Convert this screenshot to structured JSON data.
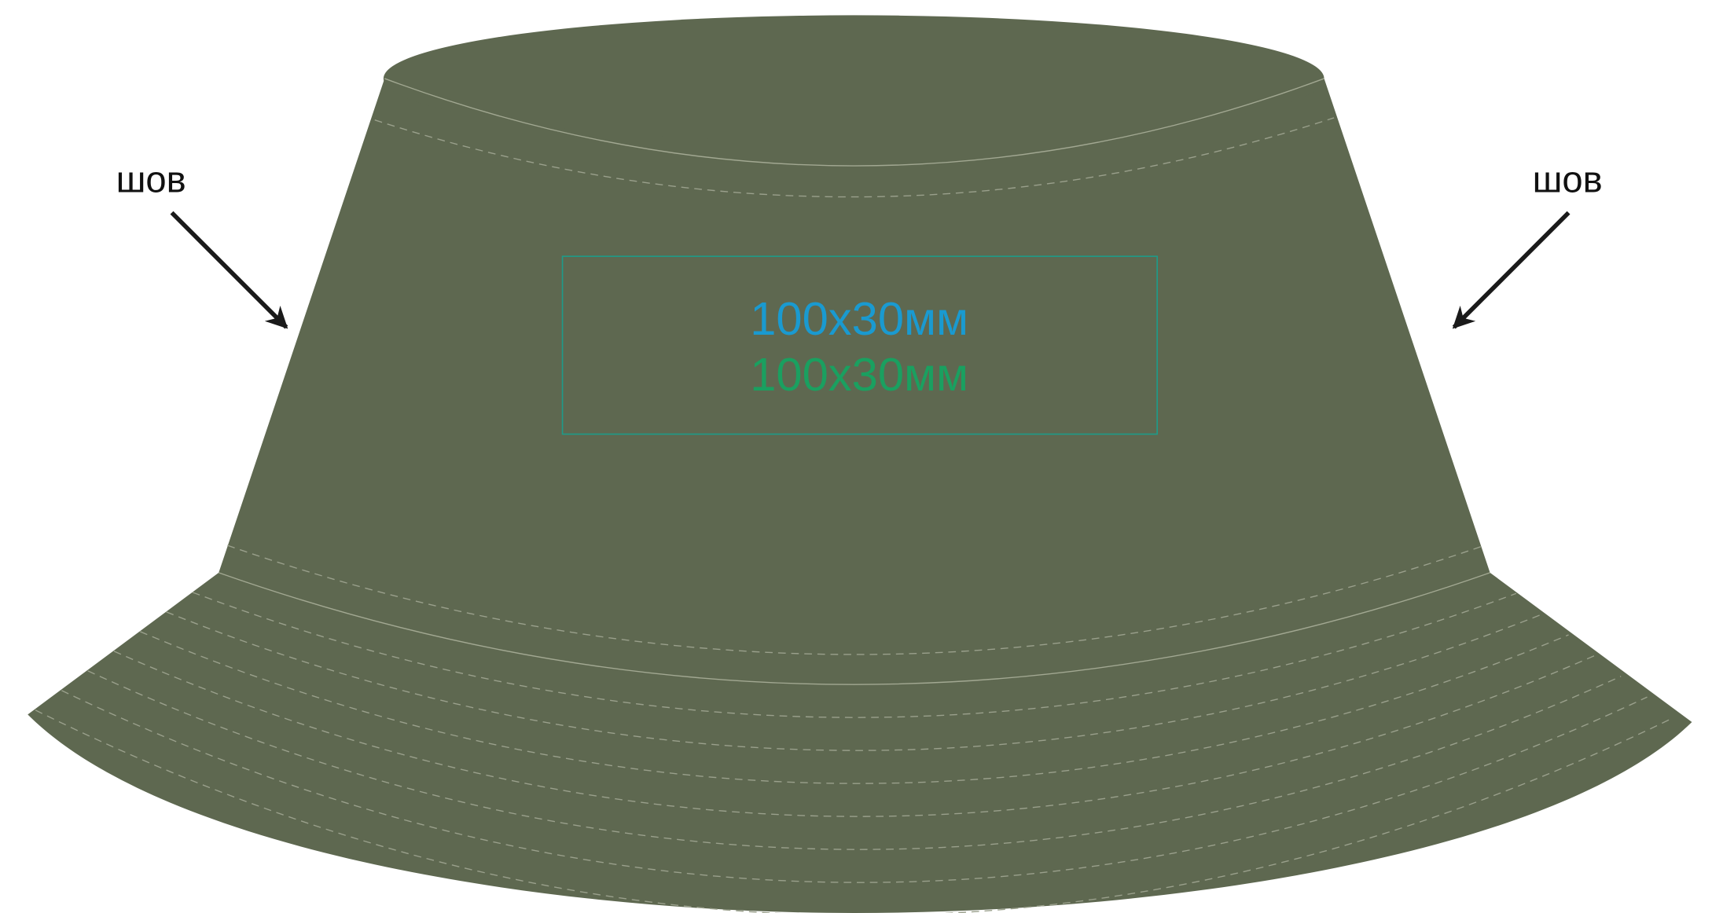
{
  "labels": {
    "left": "шов",
    "right": "шов"
  },
  "print_area": {
    "lines": [
      "100x30мм",
      "100x30мм"
    ]
  }
}
